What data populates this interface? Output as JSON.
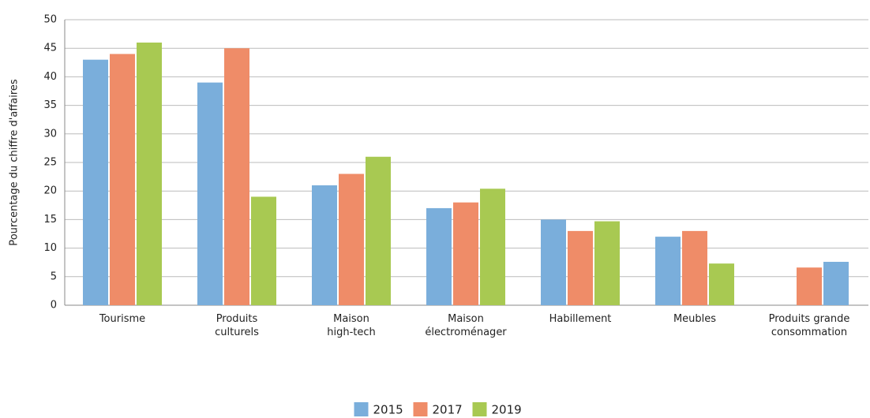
{
  "chart_data": {
    "type": "bar",
    "ylabel": "Pourcentage du chiffre d'affaires",
    "categories": [
      "Tourisme",
      "Produits\nculturels",
      "Maison\nhigh-tech",
      "Maison\nélectroménager",
      "Habillement",
      "Meubles",
      "Produits grande\nconsommation"
    ],
    "series": [
      {
        "name": "2015",
        "color": "#7aaedb",
        "values": [
          43,
          39,
          21,
          17,
          15,
          12,
          null
        ]
      },
      {
        "name": "2017",
        "color": "#ef8c68",
        "values": [
          44,
          45,
          23,
          18,
          13,
          13,
          6.6
        ]
      },
      {
        "name": "2019",
        "color": "#a8c952",
        "values": [
          46,
          19,
          26,
          20.4,
          14.7,
          7.3,
          7.6
        ],
        "point_colors": [
          null,
          null,
          null,
          null,
          null,
          null,
          "#7aaedb"
        ]
      }
    ],
    "ylim": [
      0,
      50
    ],
    "yticks": [
      0,
      5,
      10,
      15,
      20,
      25,
      30,
      35,
      40,
      45,
      50
    ],
    "grid": true,
    "legend": "bottom"
  }
}
